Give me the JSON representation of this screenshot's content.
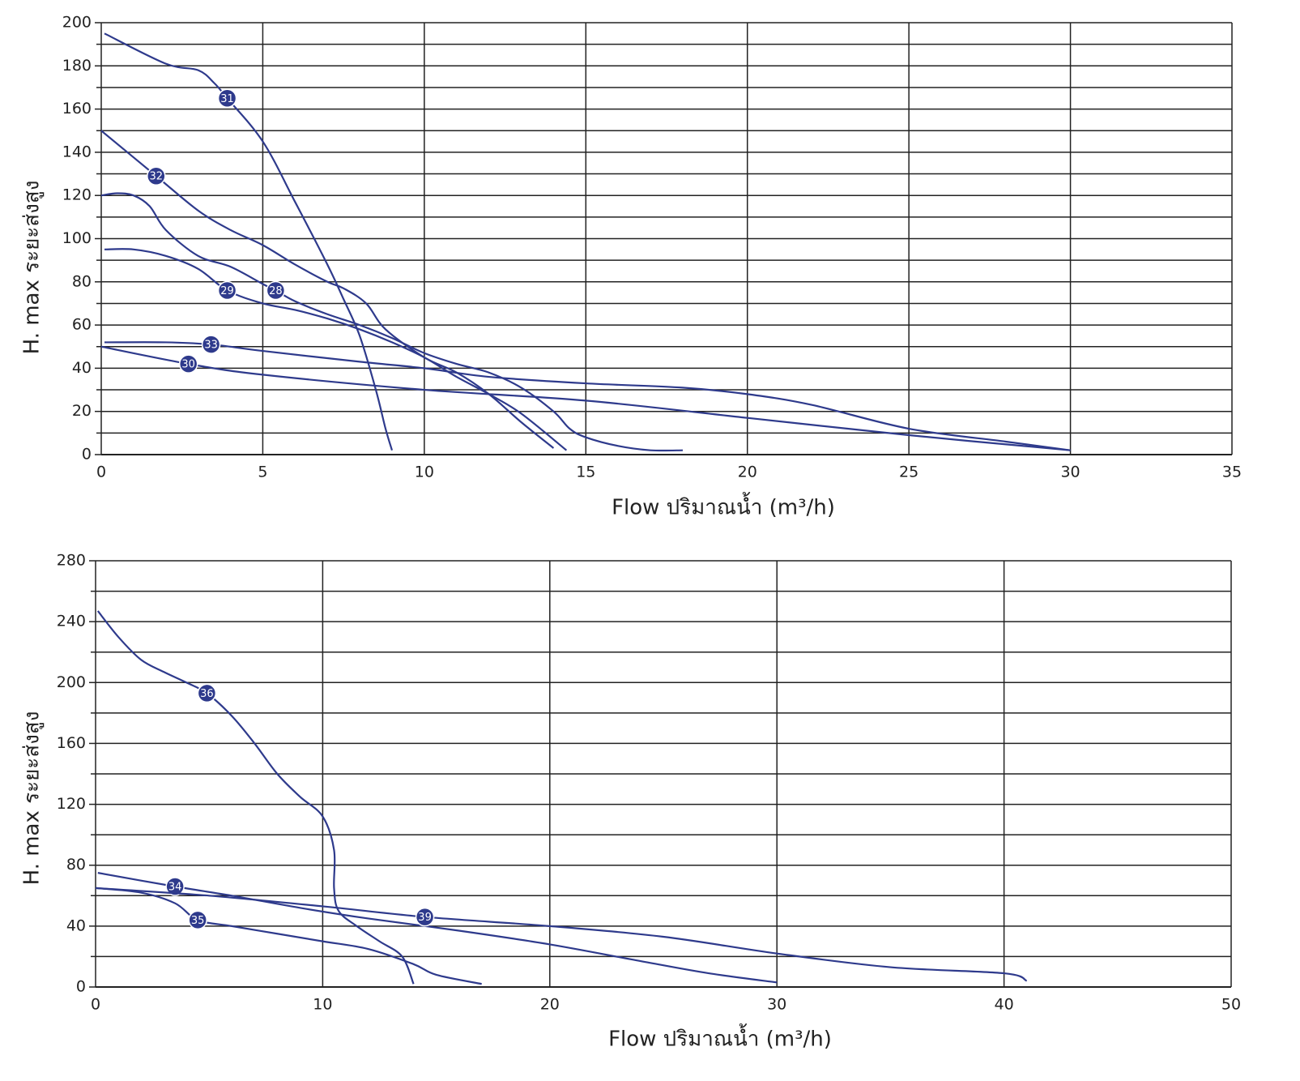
{
  "chart_data": [
    {
      "type": "line",
      "xlabel": "Flow ปริมาณน้ำ (m³/h)",
      "ylabel": "H. max ระยะส่งสูง",
      "xlim": [
        0,
        35
      ],
      "ylim": [
        0,
        200
      ],
      "xticks": [
        0,
        5,
        10,
        15,
        20,
        25,
        30,
        35
      ],
      "yticks": [
        0,
        20,
        40,
        60,
        80,
        100,
        120,
        140,
        160,
        180,
        200
      ],
      "y_minor_ticks": [
        10,
        30,
        50,
        70,
        90,
        110,
        130,
        150,
        170,
        190
      ],
      "grid": true,
      "series": [
        {
          "name": "31",
          "color": "#2e3a8c",
          "x": [
            0.1,
            2,
            3,
            3.5,
            3.9,
            5,
            6,
            7,
            7.5,
            8,
            8.5,
            8.8,
            9
          ],
          "values": [
            195,
            181,
            178,
            172,
            165,
            145,
            117,
            88,
            72,
            55,
            30,
            12,
            2
          ]
        },
        {
          "name": "32",
          "color": "#2e3a8c",
          "x": [
            0,
            1.7,
            3,
            4,
            5,
            6,
            7,
            7.5,
            8.2,
            8.8,
            10,
            11,
            12,
            13,
            14
          ],
          "values": [
            150,
            129,
            113,
            104,
            97,
            88,
            80,
            77,
            70,
            58,
            45,
            38,
            28,
            15,
            3
          ]
        },
        {
          "name": "28",
          "color": "#2e3a8c",
          "x": [
            0,
            0.5,
            1,
            1.5,
            2,
            3,
            4,
            5,
            5.4,
            6,
            7,
            8,
            9,
            10,
            11,
            12,
            13,
            14,
            14.5,
            15,
            16,
            17,
            18
          ],
          "values": [
            120,
            121,
            120,
            115,
            104,
            92,
            87,
            79,
            76,
            71,
            65,
            60,
            54,
            47,
            42,
            38,
            31,
            20,
            12,
            8,
            4,
            2,
            2
          ]
        },
        {
          "name": "29",
          "color": "#2e3a8c",
          "x": [
            0.1,
            1,
            2,
            3,
            3.9,
            5,
            6,
            7,
            8,
            9,
            10,
            11,
            12,
            13,
            14.4
          ],
          "values": [
            95,
            95,
            92,
            86,
            76,
            70,
            67,
            63,
            58,
            52,
            45,
            36,
            28,
            19,
            2
          ]
        },
        {
          "name": "33",
          "color": "#2e3a8c",
          "x": [
            0.1,
            2,
            3.4,
            5,
            8,
            10,
            12,
            15,
            18,
            20,
            22,
            25,
            28,
            30
          ],
          "values": [
            52,
            52,
            51,
            48,
            43,
            40,
            36,
            33,
            31,
            28,
            23,
            12,
            6,
            2
          ]
        },
        {
          "name": "30",
          "color": "#2e3a8c",
          "x": [
            0,
            2.7,
            5,
            10,
            15,
            20,
            25,
            30
          ],
          "values": [
            50,
            42,
            37,
            30,
            25,
            17,
            9,
            2
          ]
        }
      ]
    },
    {
      "type": "line",
      "xlabel": "Flow ปริมาณน้ำ (m³/h)",
      "ylabel": "H. max ระยะส่งสูง",
      "xlim": [
        0,
        50
      ],
      "ylim": [
        0,
        280
      ],
      "xticks": [
        0,
        10,
        20,
        30,
        40,
        50
      ],
      "yticks": [
        0,
        40,
        80,
        120,
        160,
        200,
        240,
        280
      ],
      "y_minor_ticks": [
        20,
        60,
        100,
        140,
        180,
        220,
        260
      ],
      "grid": true,
      "series": [
        {
          "name": "36",
          "color": "#2e3a8c",
          "x": [
            0.1,
            1,
            2,
            3,
            4,
            4.9,
            6,
            7,
            8,
            9,
            10,
            10.5,
            10.5,
            10.7,
            11.5,
            12.5,
            13.5,
            14
          ],
          "values": [
            247,
            230,
            215,
            207,
            200,
            193,
            178,
            160,
            140,
            125,
            112,
            90,
            65,
            50,
            40,
            30,
            20,
            2
          ]
        },
        {
          "name": "34",
          "color": "#2e3a8c",
          "x": [
            0.1,
            3.5,
            6,
            9,
            12,
            16,
            20,
            24,
            27,
            30
          ],
          "values": [
            75,
            66,
            60,
            52,
            45,
            37,
            28,
            17,
            9,
            3
          ]
        },
        {
          "name": "35",
          "color": "#2e3a8c",
          "x": [
            0,
            2,
            3.5,
            4.5,
            6,
            8,
            10,
            12,
            14,
            15,
            17
          ],
          "values": [
            65,
            62,
            55,
            44,
            40,
            35,
            30,
            25,
            15,
            8,
            2
          ]
        },
        {
          "name": "39",
          "color": "#2e3a8c",
          "x": [
            0,
            5,
            10,
            14.5,
            20,
            25,
            30,
            35,
            40,
            41
          ],
          "values": [
            65,
            60,
            53,
            46,
            40,
            33,
            22,
            13,
            9,
            4
          ]
        }
      ]
    }
  ]
}
